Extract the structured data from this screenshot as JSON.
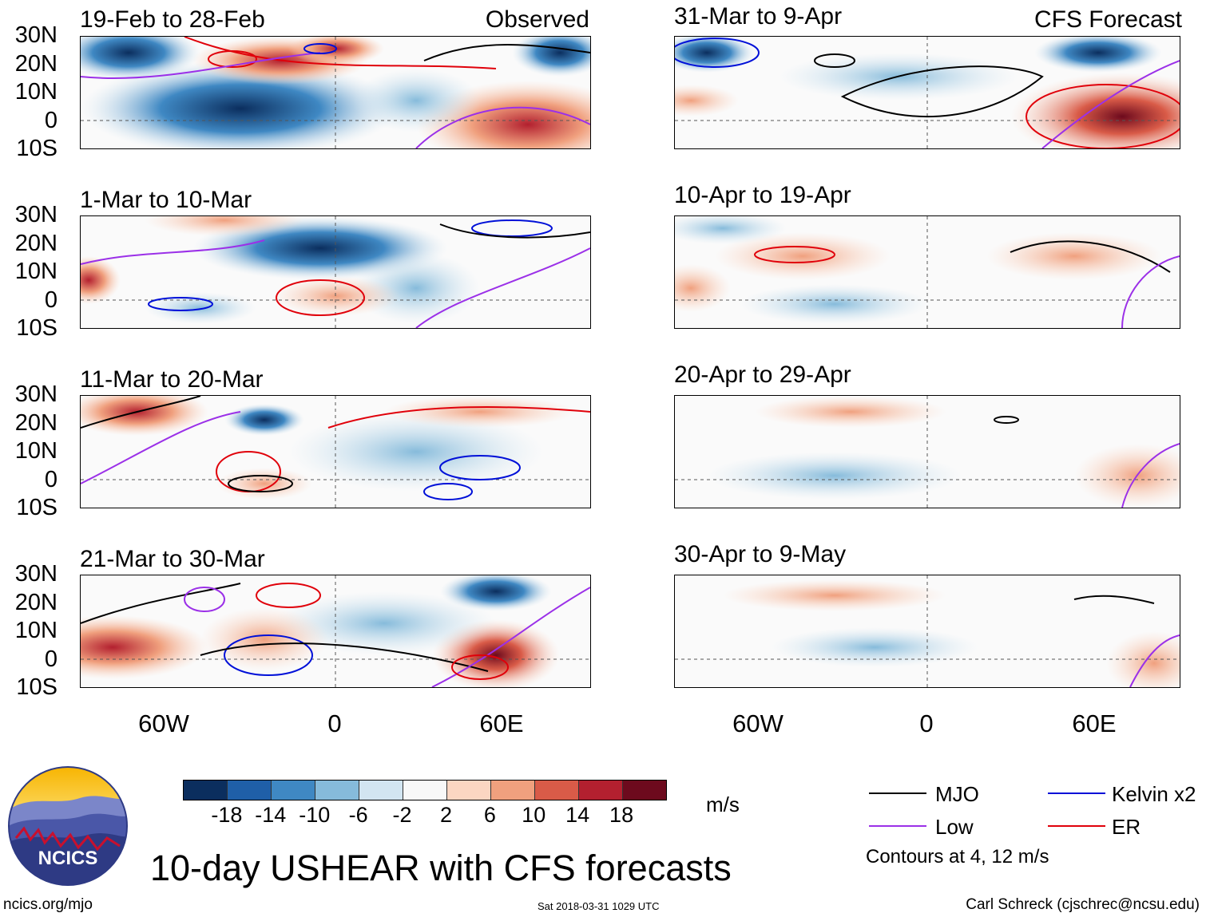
{
  "header": {
    "left_tag": "Observed",
    "right_tag": "CFS Forecast"
  },
  "panels": [
    {
      "id": "obs1",
      "title": "19-Feb to 28-Feb"
    },
    {
      "id": "obs2",
      "title": "1-Mar to 10-Mar"
    },
    {
      "id": "obs3",
      "title": "11-Mar to 20-Mar"
    },
    {
      "id": "obs4",
      "title": "21-Mar to 30-Mar"
    },
    {
      "id": "fc1",
      "title": "31-Mar to 9-Apr"
    },
    {
      "id": "fc2",
      "title": "10-Apr to 19-Apr"
    },
    {
      "id": "fc3",
      "title": "20-Apr to 29-Apr"
    },
    {
      "id": "fc4",
      "title": "30-Apr to 9-May"
    }
  ],
  "axes": {
    "lat_labels": [
      "30N",
      "20N",
      "10N",
      "0",
      "10S"
    ],
    "lon_labels": [
      "60W",
      "0",
      "60E"
    ]
  },
  "colorbar": {
    "ticks": [
      "-18",
      "-14",
      "-10",
      "-6",
      "-2",
      "2",
      "6",
      "10",
      "14",
      "18"
    ],
    "colors": [
      "#0b2e5e",
      "#1f5fa8",
      "#3f88c3",
      "#86bbdb",
      "#d2e5f1",
      "#f8f8f8",
      "#fbd6c2",
      "#f0a07e",
      "#d95b48",
      "#b3202f",
      "#6d0a1d"
    ],
    "units": "m/s"
  },
  "legend": {
    "items": [
      {
        "label": "MJO",
        "color": "#000000"
      },
      {
        "label": "Kelvin x2",
        "color": "#0010d8"
      },
      {
        "label": "Low",
        "color": "#9b30e8"
      },
      {
        "label": "ER",
        "color": "#e0000a"
      }
    ],
    "contour_note": "Contours at 4, 12 m/s"
  },
  "title": "10-day USHEAR with CFS forecasts",
  "logo_text": "NCICS",
  "footer": {
    "left": "ncics.org/mjo",
    "center": "Sat 2018-03-31 1029 UTC",
    "right": "Carl Schreck (cjschrec@ncsu.edu)"
  }
}
